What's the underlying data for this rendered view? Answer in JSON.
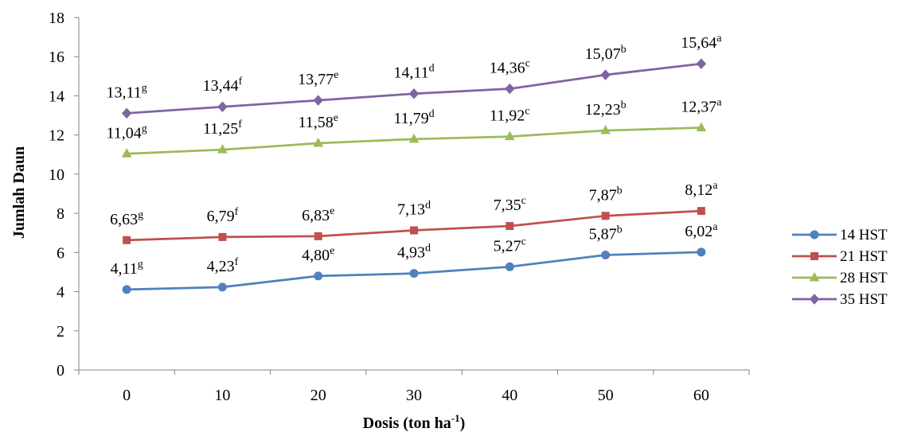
{
  "chart_data": {
    "type": "line",
    "xlabel": "Dosis (ton ha",
    "xlabel_sup": "-1",
    "xlabel_end": ")",
    "ylabel": "Jumlah Daun",
    "ylim": [
      0,
      18
    ],
    "yticks": [
      0,
      2,
      4,
      6,
      8,
      10,
      12,
      14,
      16,
      18
    ],
    "categories": [
      "0",
      "10",
      "20",
      "30",
      "40",
      "50",
      "60"
    ],
    "grid": false,
    "legend_position": "right",
    "series": [
      {
        "name": "14 HST",
        "color": "#4F81BD",
        "marker": "circle",
        "values": [
          4.11,
          4.23,
          4.8,
          4.93,
          5.27,
          5.87,
          6.02
        ],
        "labels": [
          "4,11",
          "4,23",
          "4,80",
          "4,93",
          "5,27",
          "5,87",
          "6,02"
        ],
        "letters": [
          "g",
          "f",
          "e",
          "d",
          "c",
          "b",
          "a"
        ]
      },
      {
        "name": "21 HST",
        "color": "#C0504D",
        "marker": "square",
        "values": [
          6.63,
          6.79,
          6.83,
          7.13,
          7.35,
          7.87,
          8.12
        ],
        "labels": [
          "6,63",
          "6,79",
          "6,83",
          "7,13",
          "7,35",
          "7,87",
          "8,12"
        ],
        "letters": [
          "g",
          "f",
          "e",
          "d",
          "c",
          "b",
          "a"
        ]
      },
      {
        "name": "28 HST",
        "color": "#9BBB59",
        "marker": "triangle",
        "values": [
          11.04,
          11.25,
          11.58,
          11.79,
          11.92,
          12.23,
          12.37
        ],
        "labels": [
          "11,04",
          "11,25",
          "11,58",
          "11,79",
          "11,92",
          "12,23",
          "12,37"
        ],
        "letters": [
          "g",
          "f",
          "e",
          "d",
          "c",
          "b",
          "a"
        ]
      },
      {
        "name": "35 HST",
        "color": "#8064A2",
        "marker": "diamond",
        "values": [
          13.11,
          13.44,
          13.77,
          14.11,
          14.36,
          15.07,
          15.64
        ],
        "labels": [
          "13,11",
          "13,44",
          "13,77",
          "14,11",
          "14,36",
          "15,07",
          "15,64"
        ],
        "letters": [
          "g",
          "f",
          "e",
          "d",
          "c",
          "b",
          "a"
        ]
      }
    ]
  }
}
